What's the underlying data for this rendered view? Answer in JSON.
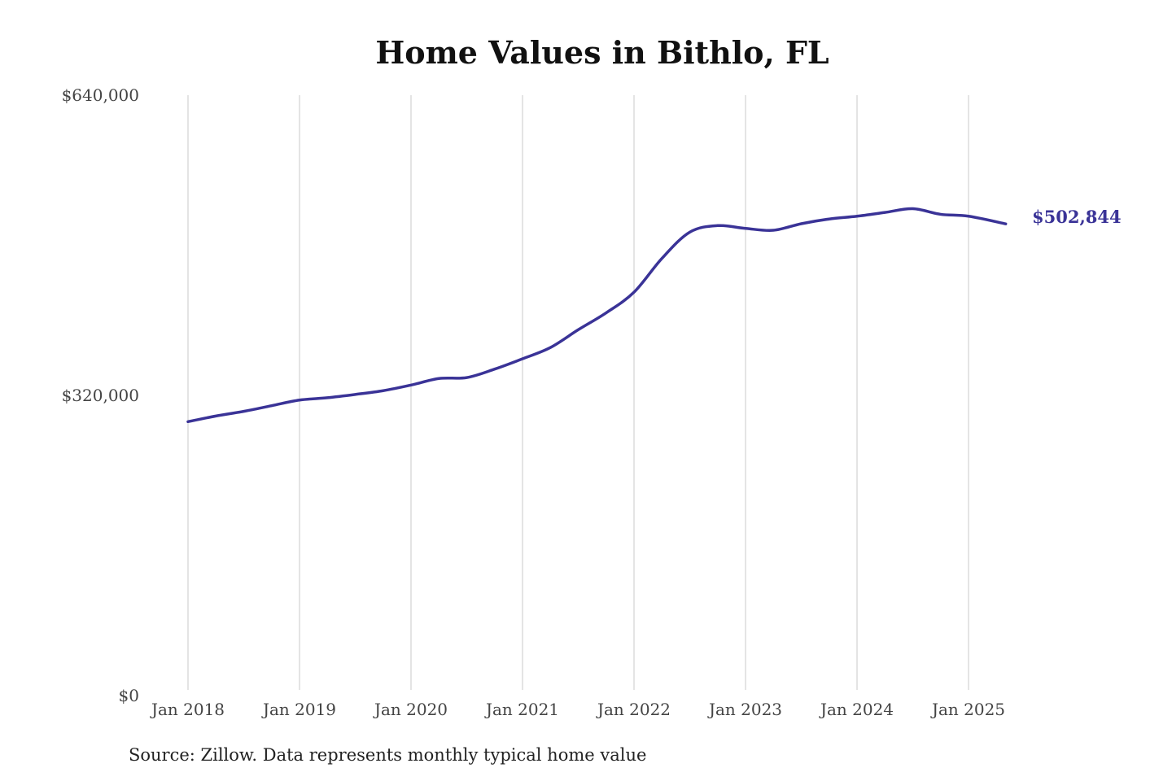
{
  "chart_data": {
    "type": "line",
    "title": "Home Values in Bithlo, FL",
    "xlabel": "",
    "ylabel": "",
    "ylim": [
      0,
      640000
    ],
    "y_ticks": [
      "$640,000",
      "$320,000",
      "$0"
    ],
    "y_tick_values": [
      640000,
      320000,
      0
    ],
    "x_ticks": [
      "Jan 2018",
      "Jan 2019",
      "Jan 2020",
      "Jan 2021",
      "Jan 2022",
      "Jan 2023",
      "Jan 2024",
      "Jan 2025"
    ],
    "grid": "vertical",
    "line_color": "#3a3397",
    "end_label": "$502,844",
    "source": "Source: Zillow. Data represents monthly typical home value",
    "series": [
      {
        "x": [
          "2018-01",
          "2018-04",
          "2018-07",
          "2018-10",
          "2019-01",
          "2019-04",
          "2019-07",
          "2019-10",
          "2020-01",
          "2020-04",
          "2020-07",
          "2020-10",
          "2021-01",
          "2021-04",
          "2021-07",
          "2021-10",
          "2022-01",
          "2022-04",
          "2022-07",
          "2022-10",
          "2023-01",
          "2023-04",
          "2023-07",
          "2023-10",
          "2024-01",
          "2024-04",
          "2024-07",
          "2024-10",
          "2025-01",
          "2025-05"
        ],
        "values": [
          292000,
          298000,
          303000,
          309000,
          315000,
          317500,
          321000,
          325000,
          331000,
          338000,
          339000,
          348000,
          359000,
          371000,
          390000,
          408000,
          430000,
          466000,
          494000,
          501000,
          498000,
          496000,
          503000,
          508000,
          511000,
          515000,
          519000,
          513000,
          511000,
          502844
        ]
      }
    ]
  }
}
